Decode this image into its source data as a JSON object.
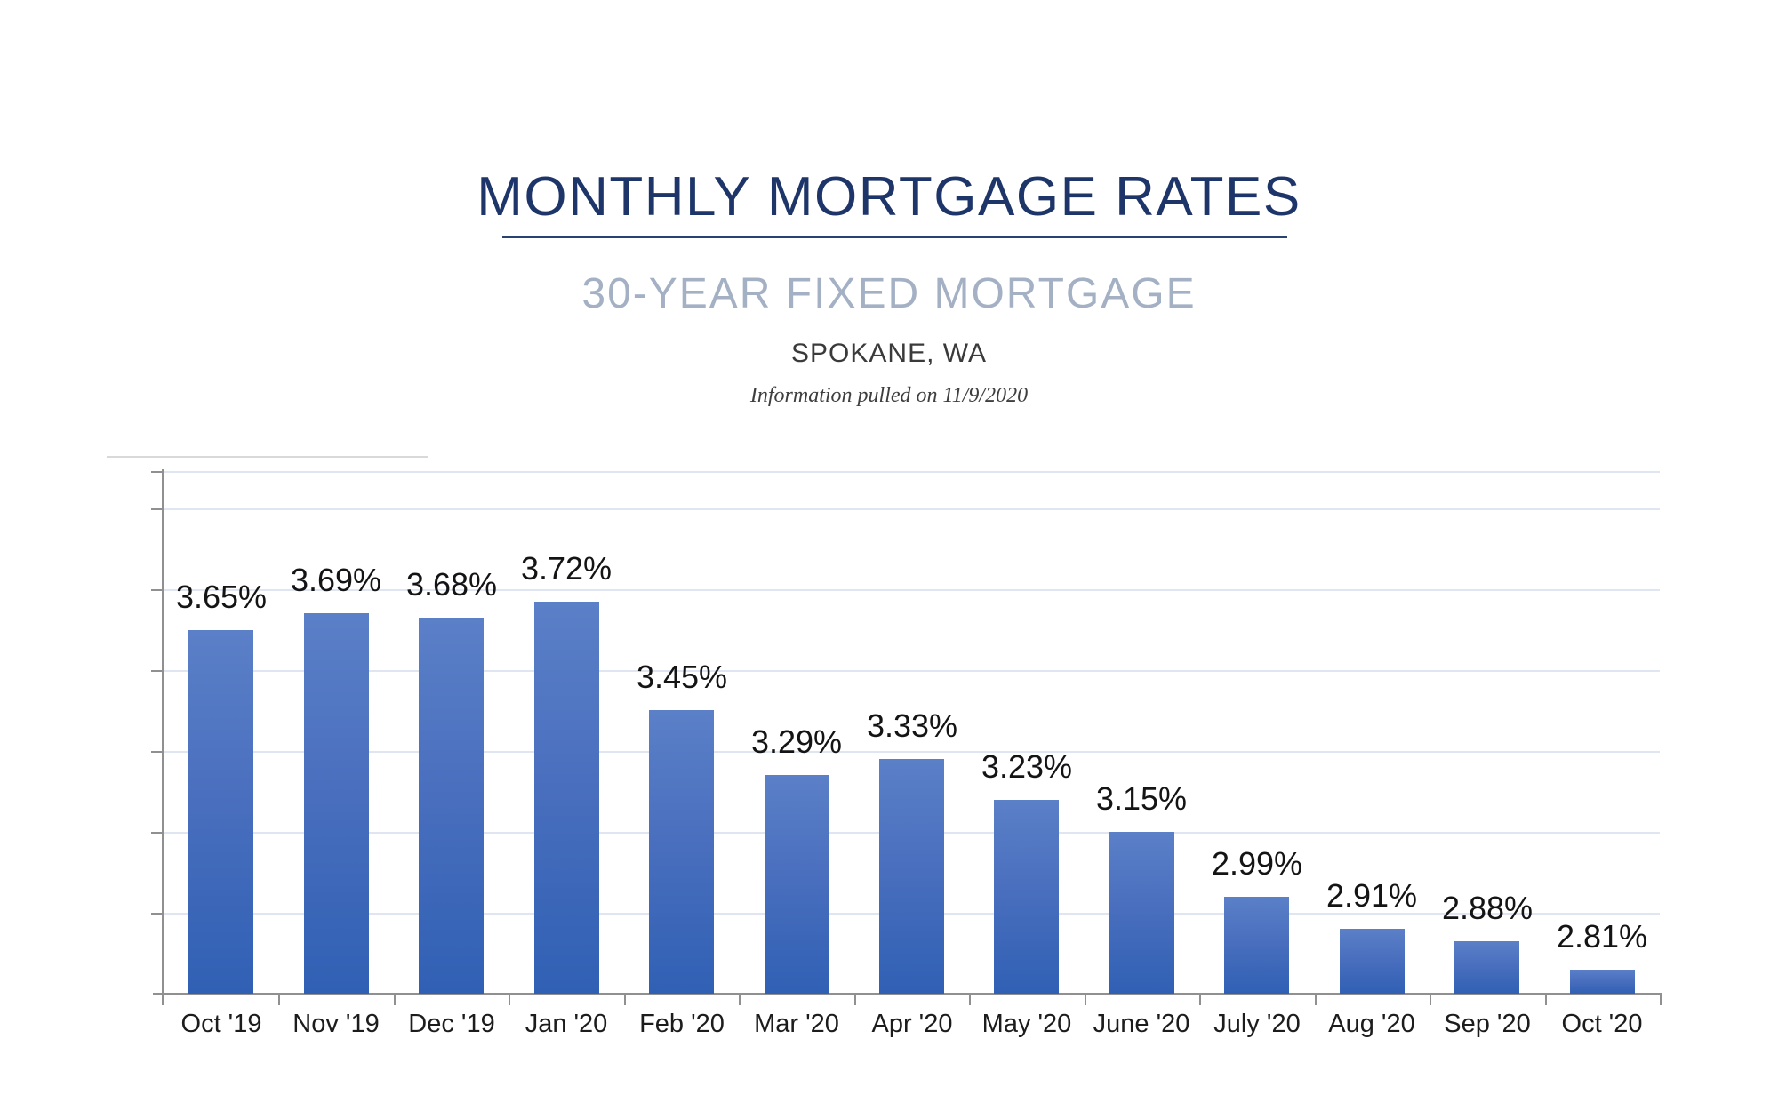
{
  "header": {
    "title": "MONTHLY MORTGAGE RATES",
    "subtitle": "30-YEAR FIXED MORTGAGE",
    "location": "SPOKANE, WA",
    "info_note": "Information pulled on 11/9/2020"
  },
  "colors": {
    "title_navy": "#1d3569",
    "underline_navy": "#29426f",
    "subtitle_gray_blue": "#a4b0c4",
    "bar_gradient_top": "#5b80c8",
    "bar_gradient_bottom": "#3060b4",
    "axis_gray": "#909090",
    "gridline_light": "#e0e5f2",
    "label_black": "#141414"
  },
  "chart_data": {
    "type": "bar",
    "title": "MONTHLY MORTGAGE RATES",
    "subtitle": "30-YEAR FIXED MORTGAGE",
    "region": "SPOKANE, WA",
    "note": "Information pulled on 11/9/2020",
    "xlabel": "",
    "ylabel": "",
    "categories": [
      "Oct '19",
      "Nov '19",
      "Dec '19",
      "Jan '20",
      "Feb '20",
      "Mar '20",
      "Apr '20",
      "May '20",
      "June '20",
      "July '20",
      "Aug '20",
      "Sep '20",
      "Oct '20"
    ],
    "values": [
      3.65,
      3.69,
      3.68,
      3.72,
      3.45,
      3.29,
      3.33,
      3.23,
      3.15,
      2.99,
      2.91,
      2.88,
      2.81
    ],
    "data_labels": [
      "3.65%",
      "3.69%",
      "3.68%",
      "3.72%",
      "3.45%",
      "3.29%",
      "3.33%",
      "3.23%",
      "3.15%",
      "2.99%",
      "2.91%",
      "2.88%",
      "2.81%"
    ],
    "unit": "%",
    "ylim": [
      2.75,
      4.04
    ],
    "gridline_values": [
      2.95,
      3.15,
      3.35,
      3.55,
      3.75,
      3.95
    ],
    "grid": "horizontal",
    "y_tick_labels_shown": false,
    "legend": "none"
  }
}
